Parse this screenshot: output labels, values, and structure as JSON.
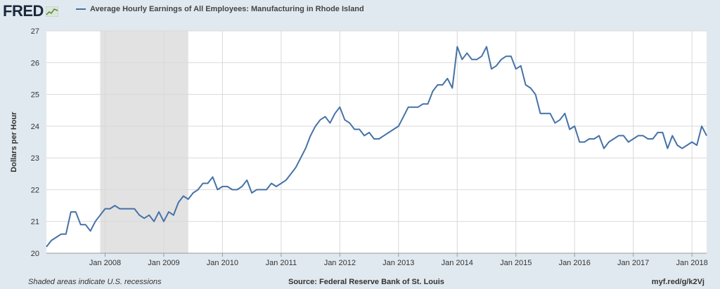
{
  "brand": {
    "name": "FRED"
  },
  "footer": {
    "note": "Shaded areas indicate U.S. recessions",
    "source": "Source: Federal Reserve Bank of St. Louis",
    "link": "myf.red/g/k2Vj"
  },
  "colors": {
    "line": "#4572a7",
    "recession": "#e2e2e2",
    "plot_bg": "#ffffff",
    "page_bg": "#e1e9f0",
    "grid": "#d9d9d9"
  },
  "chart_data": {
    "type": "line",
    "title": "",
    "xlabel": "",
    "ylabel": "Dollars per Hour",
    "ylim": [
      20,
      27
    ],
    "yticks": [
      20,
      21,
      22,
      23,
      24,
      25,
      26,
      27
    ],
    "xlim": [
      "2007-01",
      "2018-04"
    ],
    "xticks": [
      {
        "date": "2008-01",
        "label": "Jan 2008"
      },
      {
        "date": "2009-01",
        "label": "Jan 2009"
      },
      {
        "date": "2010-01",
        "label": "Jan 2010"
      },
      {
        "date": "2011-01",
        "label": "Jan 2011"
      },
      {
        "date": "2012-01",
        "label": "Jan 2012"
      },
      {
        "date": "2013-01",
        "label": "Jan 2013"
      },
      {
        "date": "2014-01",
        "label": "Jan 2014"
      },
      {
        "date": "2015-01",
        "label": "Jan 2015"
      },
      {
        "date": "2016-01",
        "label": "Jan 2016"
      },
      {
        "date": "2017-01",
        "label": "Jan 2017"
      },
      {
        "date": "2018-01",
        "label": "Jan 2018"
      }
    ],
    "grid": true,
    "legend_position": "top-left",
    "recessions": [
      {
        "start": "2007-12",
        "end": "2009-06"
      }
    ],
    "series": [
      {
        "name": "Average Hourly Earnings of All Employees: Manufacturing in Rhode Island",
        "start": "2007-01",
        "frequency": "monthly",
        "values": [
          20.2,
          20.4,
          20.5,
          20.6,
          20.6,
          21.3,
          21.3,
          20.9,
          20.9,
          20.7,
          21.0,
          21.2,
          21.4,
          21.4,
          21.5,
          21.4,
          21.4,
          21.4,
          21.4,
          21.2,
          21.1,
          21.2,
          21.0,
          21.3,
          21.0,
          21.3,
          21.2,
          21.6,
          21.8,
          21.7,
          21.9,
          22.0,
          22.2,
          22.2,
          22.4,
          22.0,
          22.1,
          22.1,
          22.0,
          22.0,
          22.1,
          22.3,
          21.9,
          22.0,
          22.0,
          22.0,
          22.2,
          22.1,
          22.2,
          22.3,
          22.5,
          22.7,
          23.0,
          23.3,
          23.7,
          24.0,
          24.2,
          24.3,
          24.1,
          24.4,
          24.6,
          24.2,
          24.1,
          23.9,
          23.9,
          23.7,
          23.8,
          23.6,
          23.6,
          23.7,
          23.8,
          23.9,
          24.0,
          24.3,
          24.6,
          24.6,
          24.6,
          24.7,
          24.7,
          25.1,
          25.3,
          25.3,
          25.5,
          25.2,
          26.5,
          26.1,
          26.3,
          26.1,
          26.1,
          26.2,
          26.5,
          25.8,
          25.9,
          26.1,
          26.2,
          26.2,
          25.8,
          25.9,
          25.3,
          25.2,
          25.0,
          24.4,
          24.4,
          24.4,
          24.1,
          24.2,
          24.4,
          23.9,
          24.0,
          23.5,
          23.5,
          23.6,
          23.6,
          23.7,
          23.3,
          23.5,
          23.6,
          23.7,
          23.7,
          23.5,
          23.6,
          23.7,
          23.7,
          23.6,
          23.6,
          23.8,
          23.8,
          23.3,
          23.7,
          23.4,
          23.3,
          23.4,
          23.5,
          23.4,
          24.0,
          23.7
        ]
      }
    ]
  }
}
